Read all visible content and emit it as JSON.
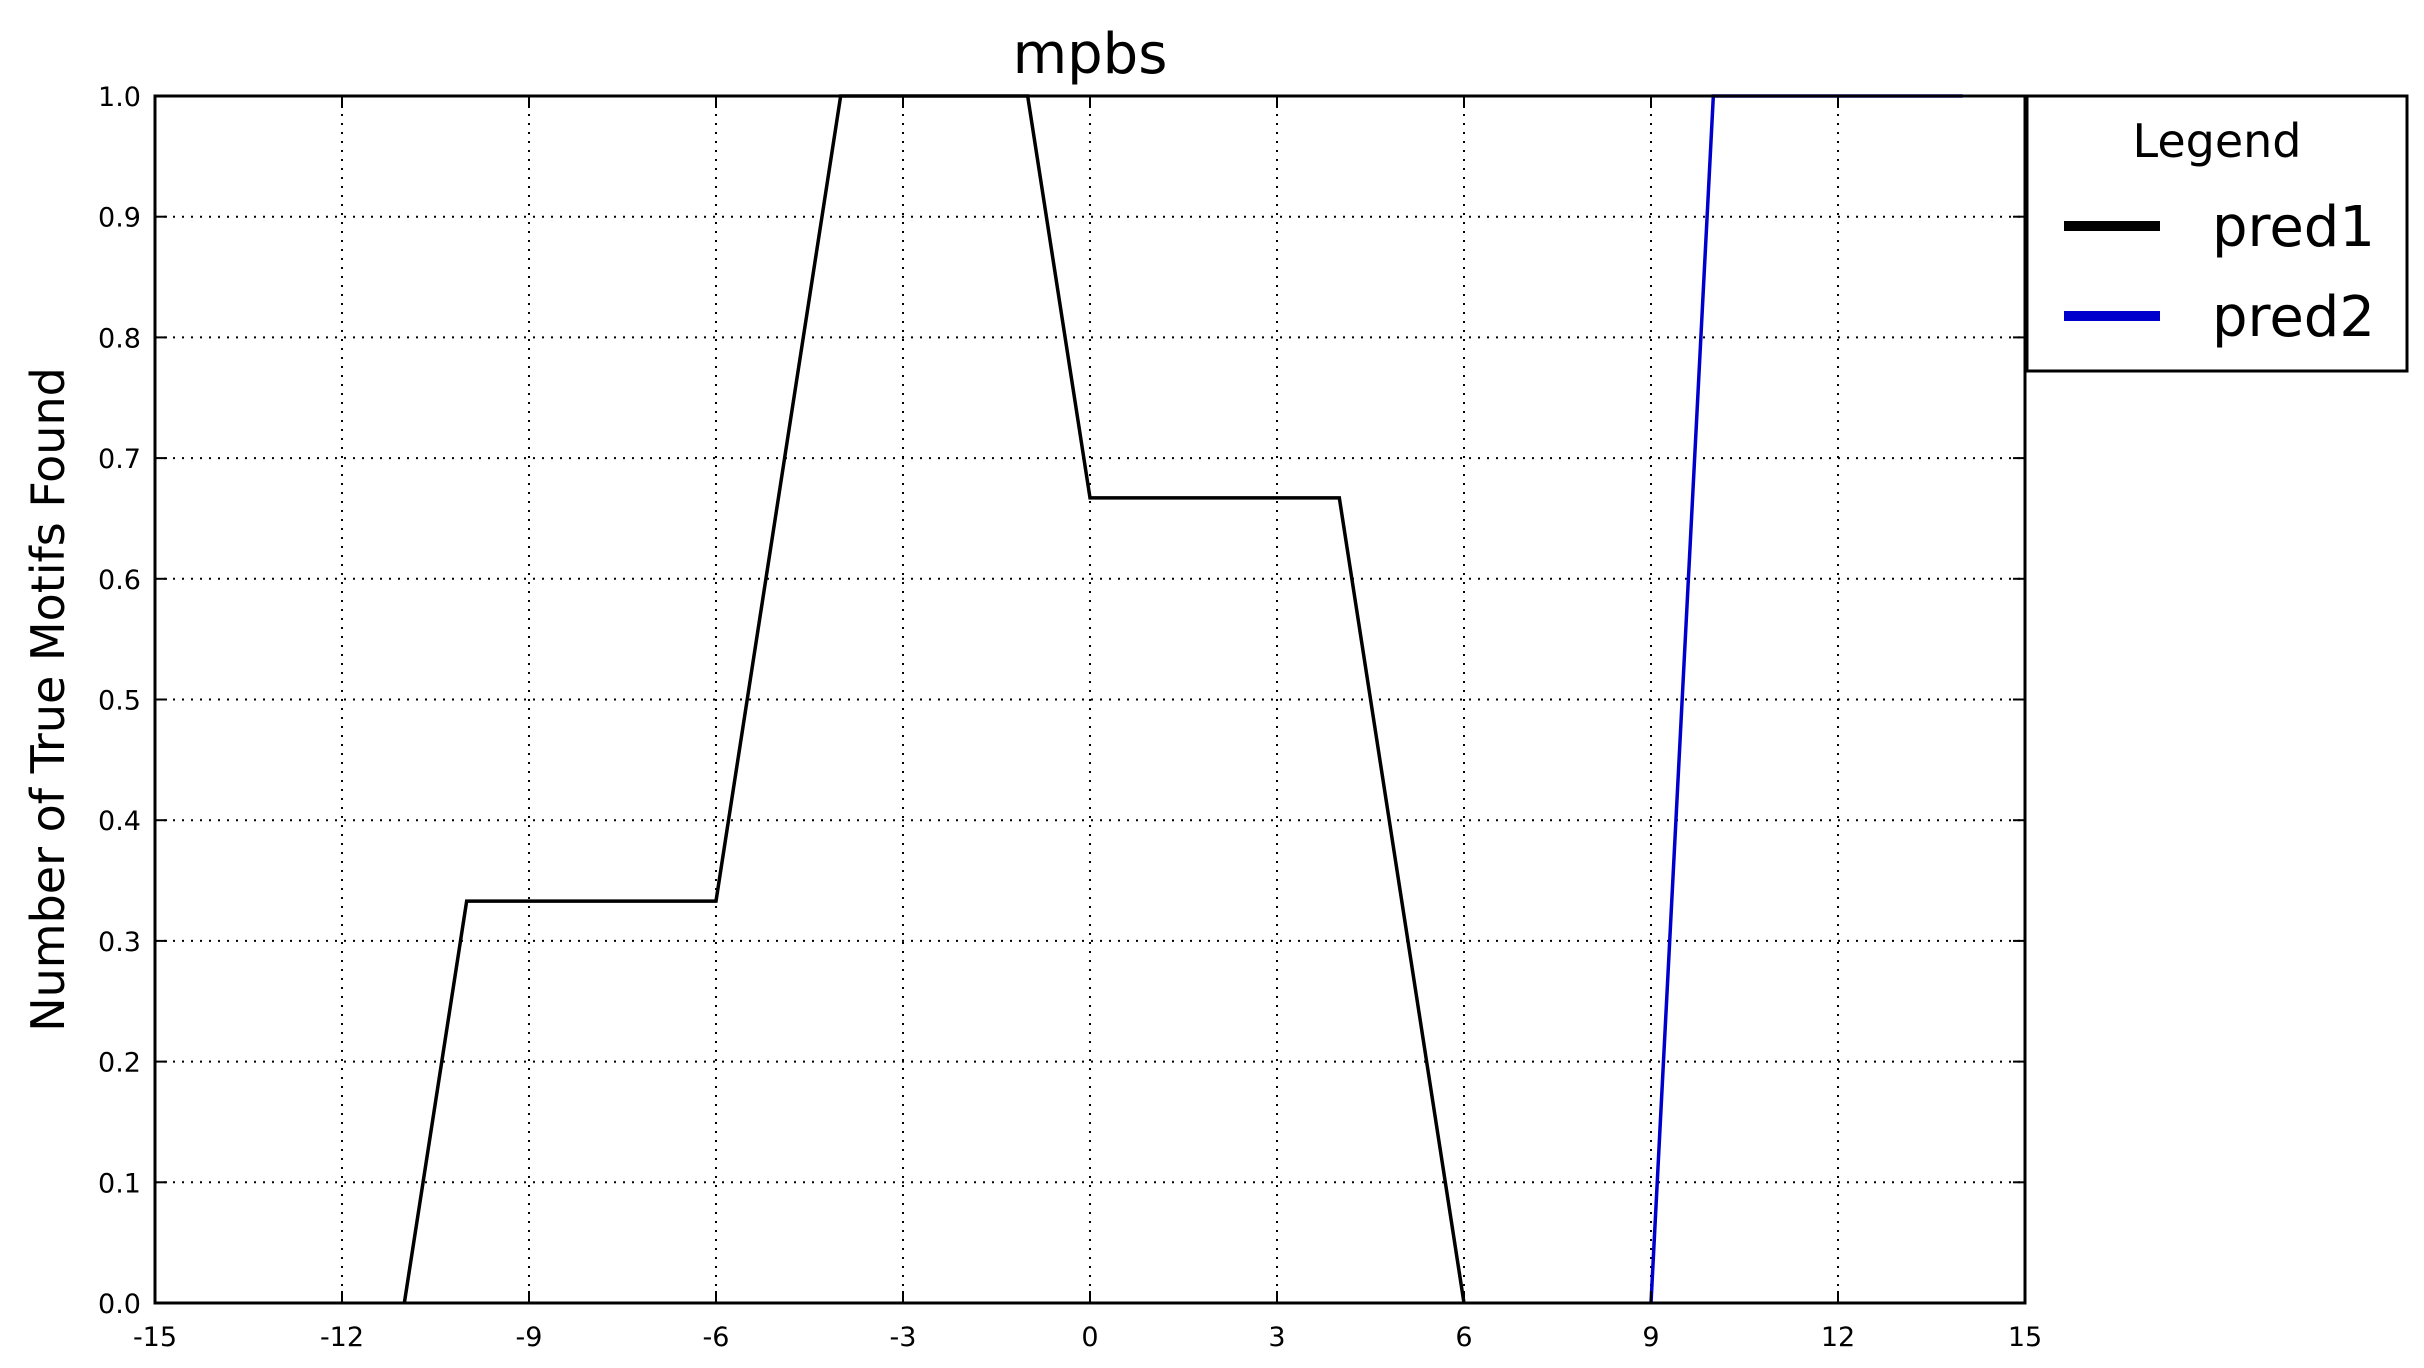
{
  "chart_data": {
    "type": "line",
    "title": "mpbs",
    "xlabel": "",
    "ylabel": "Number of True Motifs Found",
    "xlim": [
      -15,
      15
    ],
    "ylim": [
      0.0,
      1.0
    ],
    "x_ticks": [
      -15,
      -12,
      -9,
      -6,
      -3,
      0,
      3,
      6,
      9,
      12,
      15
    ],
    "x_tick_labels": [
      "-15",
      "-12",
      "-9",
      "-6",
      "-3",
      "0",
      "3",
      "6",
      "9",
      "12",
      "15"
    ],
    "y_ticks": [
      0.0,
      0.1,
      0.2,
      0.3,
      0.4,
      0.5,
      0.6,
      0.7,
      0.8,
      0.9,
      1.0
    ],
    "y_tick_labels": [
      "0.0",
      "0.1",
      "0.2",
      "0.3",
      "0.4",
      "0.5",
      "0.6",
      "0.7",
      "0.8",
      "0.9",
      "1.0"
    ],
    "grid": true,
    "legend": {
      "title": "Legend",
      "placement": "outside-right-top"
    },
    "series": [
      {
        "name": "pred1",
        "color": "#000000",
        "points": [
          {
            "x": -11,
            "y": 0.0
          },
          {
            "x": -10,
            "y": 0.333
          },
          {
            "x": -6,
            "y": 0.333
          },
          {
            "x": -4,
            "y": 1.0
          },
          {
            "x": -1,
            "y": 1.0
          },
          {
            "x": 0,
            "y": 0.667
          },
          {
            "x": 4,
            "y": 0.667
          },
          {
            "x": 6,
            "y": 0.0
          }
        ]
      },
      {
        "name": "pred2",
        "color": "#0000cc",
        "points": [
          {
            "x": 9,
            "y": 0.0
          },
          {
            "x": 10,
            "y": 1.0
          },
          {
            "x": 14,
            "y": 1.0
          }
        ]
      }
    ]
  }
}
